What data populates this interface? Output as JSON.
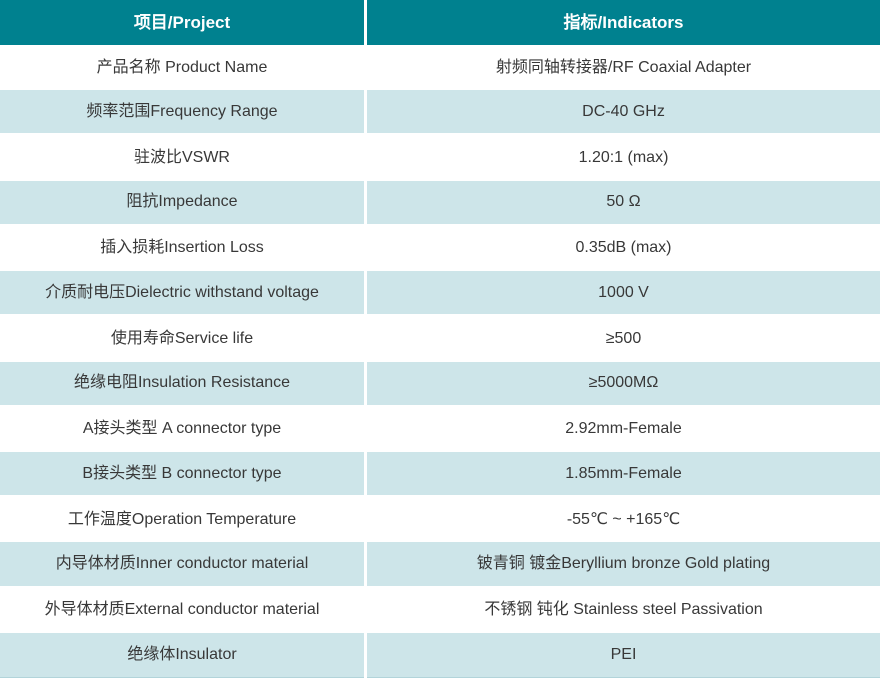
{
  "table": {
    "header": {
      "project": "项目/Project",
      "indicators": "指标/Indicators"
    },
    "rows": [
      {
        "project": "产品名称 Product Name",
        "indicator": "射频同轴转接器/RF Coaxial Adapter"
      },
      {
        "project": "频率范围Frequency Range",
        "indicator": "DC-40 GHz"
      },
      {
        "project": "驻波比VSWR",
        "indicator": "1.20:1 (max)"
      },
      {
        "project": "阻抗Impedance",
        "indicator": "50 Ω"
      },
      {
        "project": "插入损耗Insertion Loss",
        "indicator": "0.35dB (max)"
      },
      {
        "project": "介质耐电压Dielectric withstand voltage",
        "indicator": "1000 V"
      },
      {
        "project": "使用寿命Service life",
        "indicator": "≥500"
      },
      {
        "project": "绝缘电阻Insulation Resistance",
        "indicator": "≥5000MΩ"
      },
      {
        "project": "A接头类型 A connector type",
        "indicator": "2.92mm-Female"
      },
      {
        "project": "B接头类型 B connector type",
        "indicator": "1.85mm-Female"
      },
      {
        "project": "工作温度Operation Temperature",
        "indicator": "-55℃ ~ +165℃"
      },
      {
        "project": "内导体材质Inner conductor material",
        "indicator": "铍青铜 镀金Beryllium bronze Gold plating"
      },
      {
        "project": "外导体材质External conductor material",
        "indicator": "不锈钢 钝化 Stainless steel Passivation"
      },
      {
        "project": "绝缘体Insulator",
        "indicator": "PEI"
      }
    ],
    "colors": {
      "header_bg": "#00818f",
      "alt_row_bg": "#cde5e9",
      "header_text": "#ffffff",
      "body_text": "#383838",
      "divider": "#ffffff"
    }
  }
}
